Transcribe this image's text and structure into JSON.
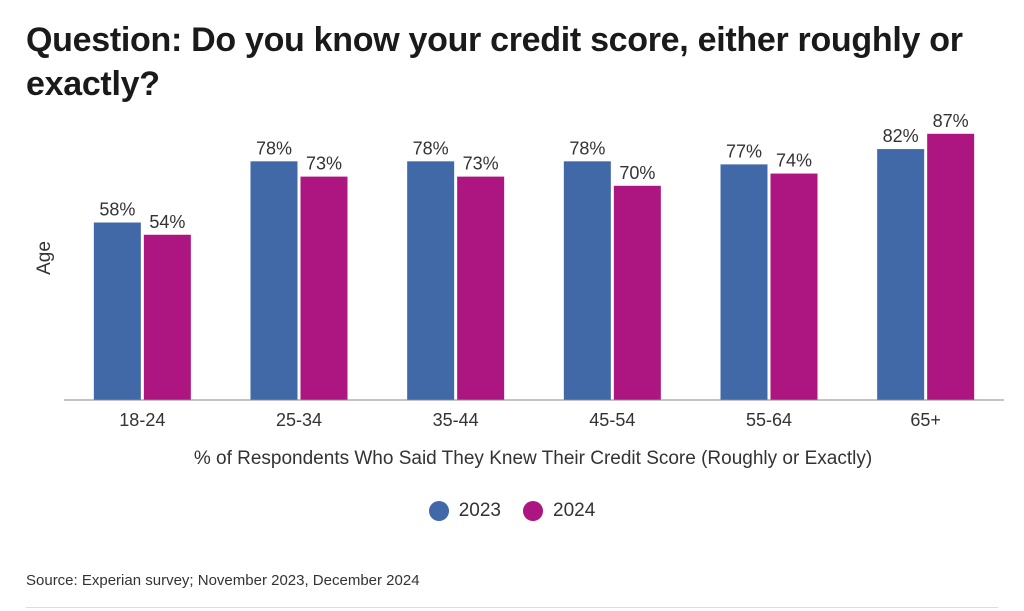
{
  "title": "Question: Do you know your credit score, either roughly or exactly?",
  "source": "Source: Experian survey; November 2023, December 2024",
  "colors": {
    "series_2023": "#4169a8",
    "series_2024": "#ad1681",
    "axis": "#888888"
  },
  "chart_data": {
    "type": "bar",
    "categories": [
      "18-24",
      "25-34",
      "35-44",
      "45-54",
      "55-64",
      "65+"
    ],
    "series": [
      {
        "name": "2023",
        "values": [
          58,
          78,
          78,
          78,
          77,
          82
        ],
        "labels": [
          "58%",
          "78%",
          "78%",
          "78%",
          "77%",
          "82%"
        ]
      },
      {
        "name": "2024",
        "values": [
          54,
          73,
          73,
          70,
          74,
          87
        ],
        "labels": [
          "54%",
          "73%",
          "73%",
          "70%",
          "74%",
          "87%"
        ]
      }
    ],
    "xlabel": "% of Respondents Who Said They Knew Their Credit Score (Roughly or Exactly)",
    "ylabel": "Age",
    "ylim": [
      0,
      100
    ],
    "grid": false,
    "legend_position": "bottom"
  }
}
